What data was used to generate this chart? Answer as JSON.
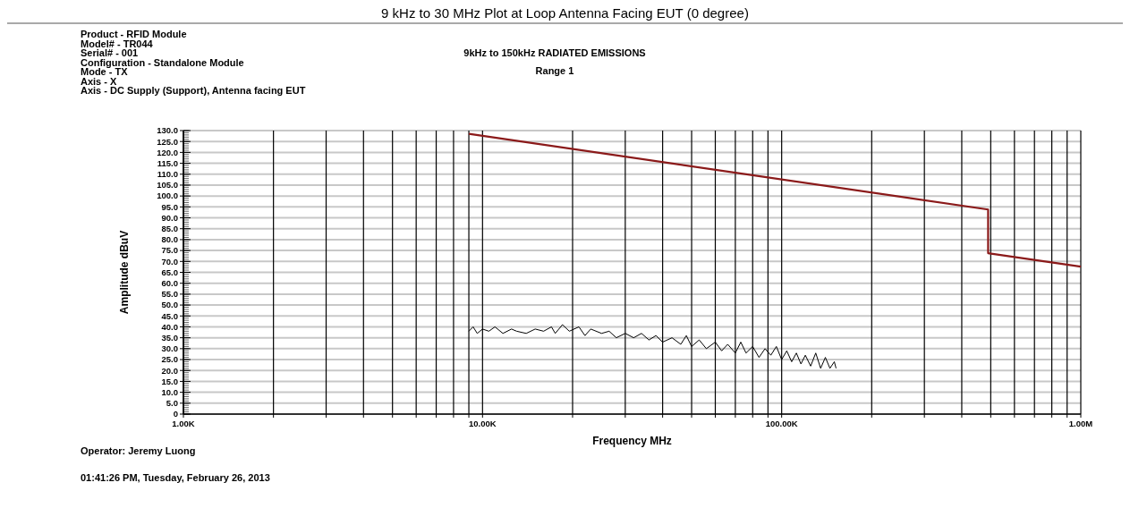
{
  "chart_data": {
    "type": "line",
    "title": "9 kHz to 30 MHz Plot at Loop Antenna Facing EUT (0 degree)",
    "subtitle": "9kHz to 150kHz RADIATED EMISSIONS",
    "xlabel": "Frequency MHz",
    "ylabel": "Amplitude dBuV",
    "annotations": [
      "Product - RFID Module",
      "Model# - TR044",
      "Serial# - 001",
      "Configuration - Standalone Module",
      "Mode - TX",
      "Axis - X",
      "Axis - DC Supply (Support), Antenna facing EUT",
      "Range 1",
      "Operator: Jeremy Luong",
      "01:41:26 PM, Tuesday, February 26, 2013"
    ],
    "log": "x",
    "grid": true,
    "xlim": [
      1000,
      1000000
    ],
    "xticks": [
      {
        "value": 1000,
        "label": "1.00K"
      },
      {
        "value": 2000,
        "label": null
      },
      {
        "value": 3000,
        "label": null
      },
      {
        "value": 4000,
        "label": null
      },
      {
        "value": 5000,
        "label": null
      },
      {
        "value": 6000,
        "label": null
      },
      {
        "value": 7000,
        "label": null
      },
      {
        "value": 8000,
        "label": null
      },
      {
        "value": 9000,
        "label": null
      },
      {
        "value": 10000,
        "label": "10.00K"
      },
      {
        "value": 20000,
        "label": null
      },
      {
        "value": 30000,
        "label": null
      },
      {
        "value": 40000,
        "label": null
      },
      {
        "value": 50000,
        "label": null
      },
      {
        "value": 60000,
        "label": null
      },
      {
        "value": 70000,
        "label": null
      },
      {
        "value": 80000,
        "label": null
      },
      {
        "value": 90000,
        "label": null
      },
      {
        "value": 100000,
        "label": "100.00K"
      },
      {
        "value": 200000,
        "label": null
      },
      {
        "value": 300000,
        "label": null
      },
      {
        "value": 400000,
        "label": null
      },
      {
        "value": 500000,
        "label": null
      },
      {
        "value": 600000,
        "label": null
      },
      {
        "value": 700000,
        "label": null
      },
      {
        "value": 800000,
        "label": null
      },
      {
        "value": 900000,
        "label": null
      },
      {
        "value": 1000000,
        "label": "1.00M"
      }
    ],
    "ylim": [
      0,
      130
    ],
    "yticks": [
      0,
      {
        "value": 5,
        "label": "5.0"
      },
      {
        "value": 10,
        "label": "10.0"
      },
      {
        "value": 15,
        "label": "15.0"
      },
      {
        "value": 20,
        "label": "20.0"
      },
      {
        "value": 25,
        "label": "25.0"
      },
      {
        "value": 30,
        "label": "30.0"
      },
      {
        "value": 35,
        "label": "35.0"
      },
      {
        "value": 40,
        "label": "40.0"
      },
      {
        "value": 45,
        "label": "45.0"
      },
      {
        "value": 50,
        "label": "50.0"
      },
      {
        "value": 55,
        "label": "55.0"
      },
      {
        "value": 60,
        "label": "60.0"
      },
      {
        "value": 65,
        "label": "65.0"
      },
      {
        "value": 70,
        "label": "70.0"
      },
      {
        "value": 75,
        "label": "75.0"
      },
      {
        "value": 80,
        "label": "80.0"
      },
      {
        "value": 85,
        "label": "85.0"
      },
      {
        "value": 90,
        "label": "90.0"
      },
      {
        "value": 95,
        "label": "95.0"
      },
      {
        "value": 100,
        "label": "100.0"
      },
      {
        "value": 105,
        "label": "105.0"
      },
      {
        "value": 110,
        "label": "110.0"
      },
      {
        "value": 115,
        "label": "115.0"
      },
      {
        "value": 120,
        "label": "120.0"
      },
      {
        "value": 125,
        "label": "125.0"
      },
      {
        "value": 130,
        "label": "130.0"
      }
    ],
    "series": [
      {
        "color": "#8b1a1a",
        "x": [
          9000,
          490000,
          490000,
          1000000
        ],
        "values": [
          128.5,
          93.8,
          73.8,
          67.6
        ]
      },
      {
        "color": "#000000",
        "x": [
          9000,
          9300,
          9600,
          10000,
          10500,
          11000,
          11700,
          12500,
          13000,
          14000,
          15000,
          16000,
          17000,
          17500,
          18500,
          19500,
          21000,
          22000,
          23000,
          25000,
          26500,
          28000,
          30000,
          32000,
          34000,
          36000,
          38000,
          40000,
          43000,
          46000,
          48000,
          50000,
          53000,
          56000,
          60000,
          63000,
          66000,
          70000,
          73000,
          76000,
          80000,
          84000,
          88000,
          92000,
          96000,
          100000,
          104000,
          108000,
          112000,
          116000,
          120000,
          125000,
          130000,
          135000,
          140000,
          145000,
          150000,
          152000
        ],
        "values": [
          38,
          40,
          37,
          39,
          38,
          40,
          37,
          39,
          38,
          37,
          39,
          38,
          40,
          37,
          41,
          38,
          40,
          36,
          39,
          37,
          38,
          35,
          37,
          35,
          37,
          34,
          36,
          33,
          35,
          32,
          36,
          31,
          34,
          30,
          33,
          29,
          32,
          28,
          33,
          28,
          31,
          26,
          30,
          27,
          31,
          25,
          29,
          24,
          28,
          23,
          27,
          22,
          28,
          21,
          26,
          21,
          24,
          21
        ]
      }
    ]
  }
}
